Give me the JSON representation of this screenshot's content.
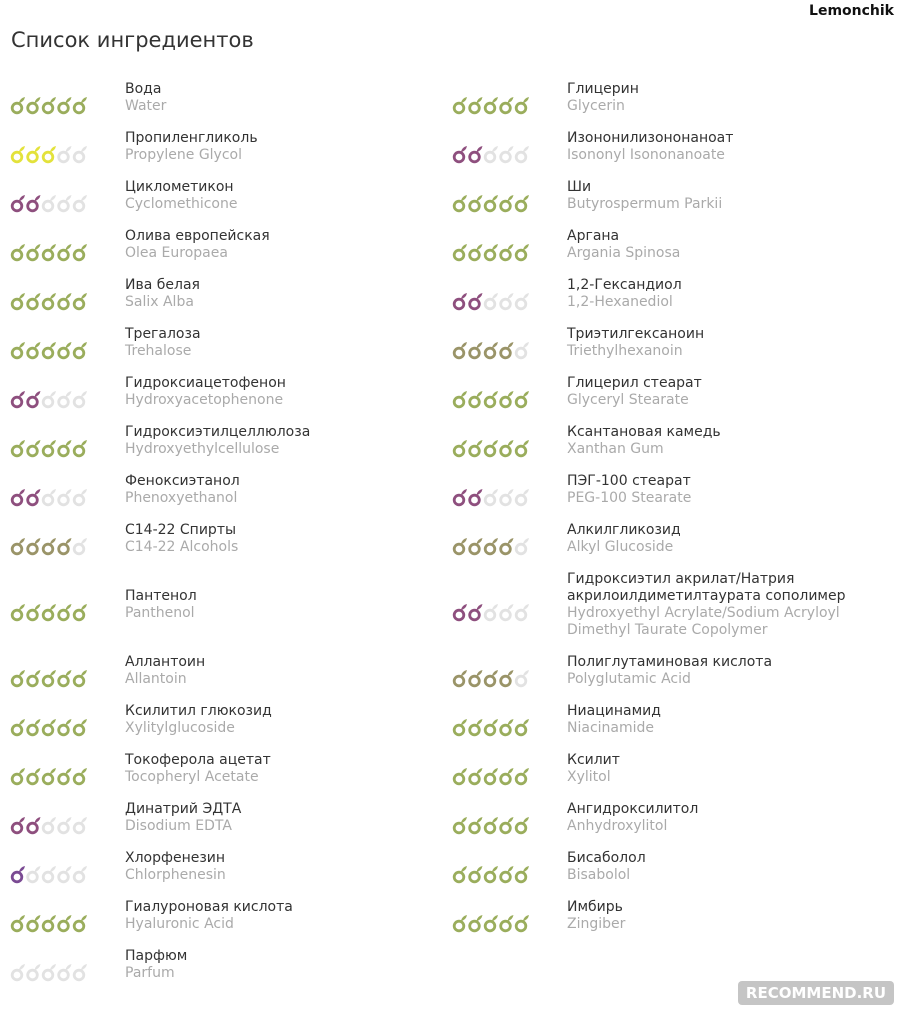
{
  "header": {
    "user": "Lemonchik",
    "title": "Список ингредиентов"
  },
  "rating_max": 5,
  "rating_colors": {
    "0": "#e2e2e2",
    "1": "#7a4a93",
    "2": "#8e4f7e",
    "3": "#e3e23b",
    "4": "#9a9468",
    "5": "#9aad5c"
  },
  "empty_color": "#e2e2e2",
  "columns": [
    [
      {
        "name": "Вода",
        "latin": "Water",
        "rating": 5
      },
      {
        "name": "Пропиленгликоль",
        "latin": "Propylene Glycol",
        "rating": 3
      },
      {
        "name": "Циклометикон",
        "latin": "Cyclomethicone",
        "rating": 2
      },
      {
        "name": "Олива европейская",
        "latin": "Olea Europaea",
        "rating": 5
      },
      {
        "name": "Ива белая",
        "latin": "Salix Alba",
        "rating": 5
      },
      {
        "name": "Трегалоза",
        "latin": "Trehalose",
        "rating": 5
      },
      {
        "name": "Гидроксиацетофенон",
        "latin": "Hydroxyacetophenone",
        "rating": 2
      },
      {
        "name": "Гидроксиэтилцеллюлоза",
        "latin": "Hydroxyethylcellulose",
        "rating": 5
      },
      {
        "name": "Феноксиэтанол",
        "latin": "Phenoxyethanol",
        "rating": 2
      },
      {
        "name": "С14-22 Спирты",
        "latin": "C14-22 Alcohols",
        "rating": 4
      },
      {
        "name": "Пантенол",
        "latin": "Panthenol",
        "rating": 5
      },
      {
        "name": "Аллантоин",
        "latin": "Allantoin",
        "rating": 5
      },
      {
        "name": "Ксилитил глюкозид",
        "latin": "Xylitylglucoside",
        "rating": 5
      },
      {
        "name": "Токоферола ацетат",
        "latin": "Tocopheryl Acetate",
        "rating": 5
      },
      {
        "name": "Динатрий ЭДТА",
        "latin": "Disodium EDTA",
        "rating": 2
      },
      {
        "name": "Хлорфенезин",
        "latin": "Chlorphenesin",
        "rating": 1
      },
      {
        "name": "Гиалуроновая кислота",
        "latin": "Hyaluronic Acid",
        "rating": 5
      },
      {
        "name": "Парфюм",
        "latin": "Parfum",
        "rating": 0
      }
    ],
    [
      {
        "name": "Глицерин",
        "latin": "Glycerin",
        "rating": 5
      },
      {
        "name": "Изононилизононаноат",
        "latin": "Isononyl Isononanoate",
        "rating": 2
      },
      {
        "name": "Ши",
        "latin": "Butyrospermum Parkii",
        "rating": 5
      },
      {
        "name": "Аргана",
        "latin": "Argania Spinosa",
        "rating": 5
      },
      {
        "name": "1,2-Гександиол",
        "latin": "1,2-Hexanediol",
        "rating": 2
      },
      {
        "name": "Триэтилгексаноин",
        "latin": "Triethylhexanoin",
        "rating": 4
      },
      {
        "name": "Глицерил стеарат",
        "latin": "Glyceryl Stearate",
        "rating": 5
      },
      {
        "name": "Ксантановая камедь",
        "latin": "Xanthan Gum",
        "rating": 5
      },
      {
        "name": "ПЭГ-100 стеарат",
        "latin": "PEG-100 Stearate",
        "rating": 2
      },
      {
        "name": "Алкилгликозид",
        "latin": "Alkyl Glucoside",
        "rating": 4
      },
      {
        "name": "Гидроксиэтил акрилат/Натрия акрилоилдиметилтаурата сополимер",
        "latin": "Hydroxyethyl Acrylate/Sodium Acryloyl Dimethyl Taurate Copolymer",
        "rating": 2
      },
      {
        "name": "Полиглутаминовая кислота",
        "latin": "Polyglutamic Acid",
        "rating": 4
      },
      {
        "name": "Ниацинамид",
        "latin": "Niacinamide",
        "rating": 5
      },
      {
        "name": "Ксилит",
        "latin": "Xylitol",
        "rating": 5
      },
      {
        "name": "Ангидроксилитол",
        "latin": "Anhydroxylitol",
        "rating": 5
      },
      {
        "name": "Бисаболол",
        "latin": "Bisabolol",
        "rating": 5
      },
      {
        "name": "Имбирь",
        "latin": "Zingiber",
        "rating": 5
      }
    ]
  ],
  "watermark": "RECOMMEND.RU"
}
